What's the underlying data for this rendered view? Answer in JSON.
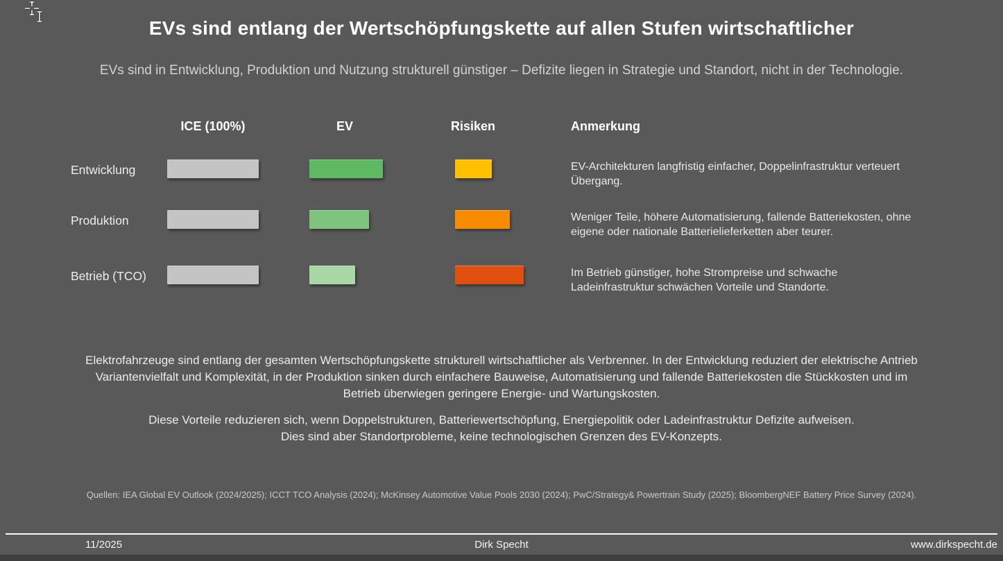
{
  "slide": {
    "background_color": "#595959",
    "bottom_strip_color": "#3f3f3f",
    "title": "EVs sind entlang der Wertschöpfungskette auf allen Stufen wirtschaftlicher",
    "subtitle": "EVs sind in Entwicklung, Produktion und Nutzung strukturell günstiger – Defizite liegen in Strategie und Standort, nicht in der Technologie."
  },
  "icons": {
    "cursor": "move-crosshair-with-text-ibeam-cursor"
  },
  "comparison": {
    "headers": {
      "ice": "ICE (100%)",
      "ev": "EV",
      "risk": "Risiken",
      "annotation": "Anmerkung"
    },
    "rows": [
      {
        "label": "Entwicklung",
        "ice": {
          "pct": 100,
          "color": "#c4c4c4"
        },
        "ev": {
          "pct": 80,
          "color": "#5fb963"
        },
        "risk": {
          "pct": 40,
          "color": "#ffc000"
        },
        "annotation": "EV-Architekturen langfristig einfacher, Doppelinfrastruktur verteuert\nÜbergang."
      },
      {
        "label": "Produktion",
        "ice": {
          "pct": 100,
          "color": "#c4c4c4"
        },
        "ev": {
          "pct": 65,
          "color": "#7ec47f"
        },
        "risk": {
          "pct": 60,
          "color": "#f88c00"
        },
        "annotation": "Weniger Teile, höhere Automatisierung, fallende Batteriekosten, ohne\neigene oder nationale Batterielieferketten aber teurer."
      },
      {
        "label": "Betrieb (TCO)",
        "ice": {
          "pct": 100,
          "color": "#c4c4c4"
        },
        "ev": {
          "pct": 50,
          "color": "#a9d7a6"
        },
        "risk": {
          "pct": 75,
          "color": "#e04f0d"
        },
        "annotation": "Im Betrieb günstiger, hohe Strompreise und schwache\nLadeinfrastruktur schwächen Vorteile und Standorte."
      }
    ]
  },
  "summary": {
    "paragraph1": "Elektrofahrzeuge sind entlang der gesamten Wertschöpfungskette strukturell wirtschaftlicher als Verbrenner. In der Entwicklung reduziert der elektrische Antrieb\nVariantenvielfalt und Komplexität, in der Produktion sinken durch einfachere Bauweise, Automatisierung und fallende Batteriekosten die Stückkosten und im\nBetrieb überwiegen geringere Energie- und Wartungskosten.",
    "paragraph2": "Diese Vorteile reduzieren sich, wenn Doppelstrukturen, Batteriewertschöpfung, Energiepolitik oder Ladeinfrastruktur Defizite aufweisen.\nDies sind aber Standortprobleme, keine technologischen Grenzen des EV-Konzepts."
  },
  "sources": "Quellen: IEA Global EV Outlook (2024/2025); ICCT TCO Analysis (2024); McKinsey Automotive Value Pools 2030 (2024); PwC/Strategy& Powertrain Study (2025); BloombergNEF Battery Price Survey (2024).",
  "footer": {
    "date": "11/2025",
    "author": "Dirk Specht",
    "website": "www.dirkspecht.de"
  },
  "chart_data": {
    "type": "bar",
    "orientation": "horizontal",
    "categories": [
      "Entwicklung",
      "Produktion",
      "Betrieb (TCO)"
    ],
    "series": [
      {
        "name": "ICE (100%)",
        "values": [
          100,
          100,
          100
        ],
        "colors": [
          "#c4c4c4",
          "#c4c4c4",
          "#c4c4c4"
        ]
      },
      {
        "name": "EV",
        "values": [
          80,
          65,
          50
        ],
        "colors": [
          "#5fb963",
          "#7ec47f",
          "#a9d7a6"
        ]
      },
      {
        "name": "Risiken",
        "values": [
          40,
          60,
          75
        ],
        "colors": [
          "#ffc000",
          "#f88c00",
          "#e04f0d"
        ]
      }
    ],
    "title": "EVs sind entlang der Wertschöpfungskette auf allen Stufen wirtschaftlicher",
    "xlabel": "",
    "ylabel": "",
    "xlim": [
      0,
      100
    ],
    "grid": false,
    "legend_position": "column-headers"
  }
}
